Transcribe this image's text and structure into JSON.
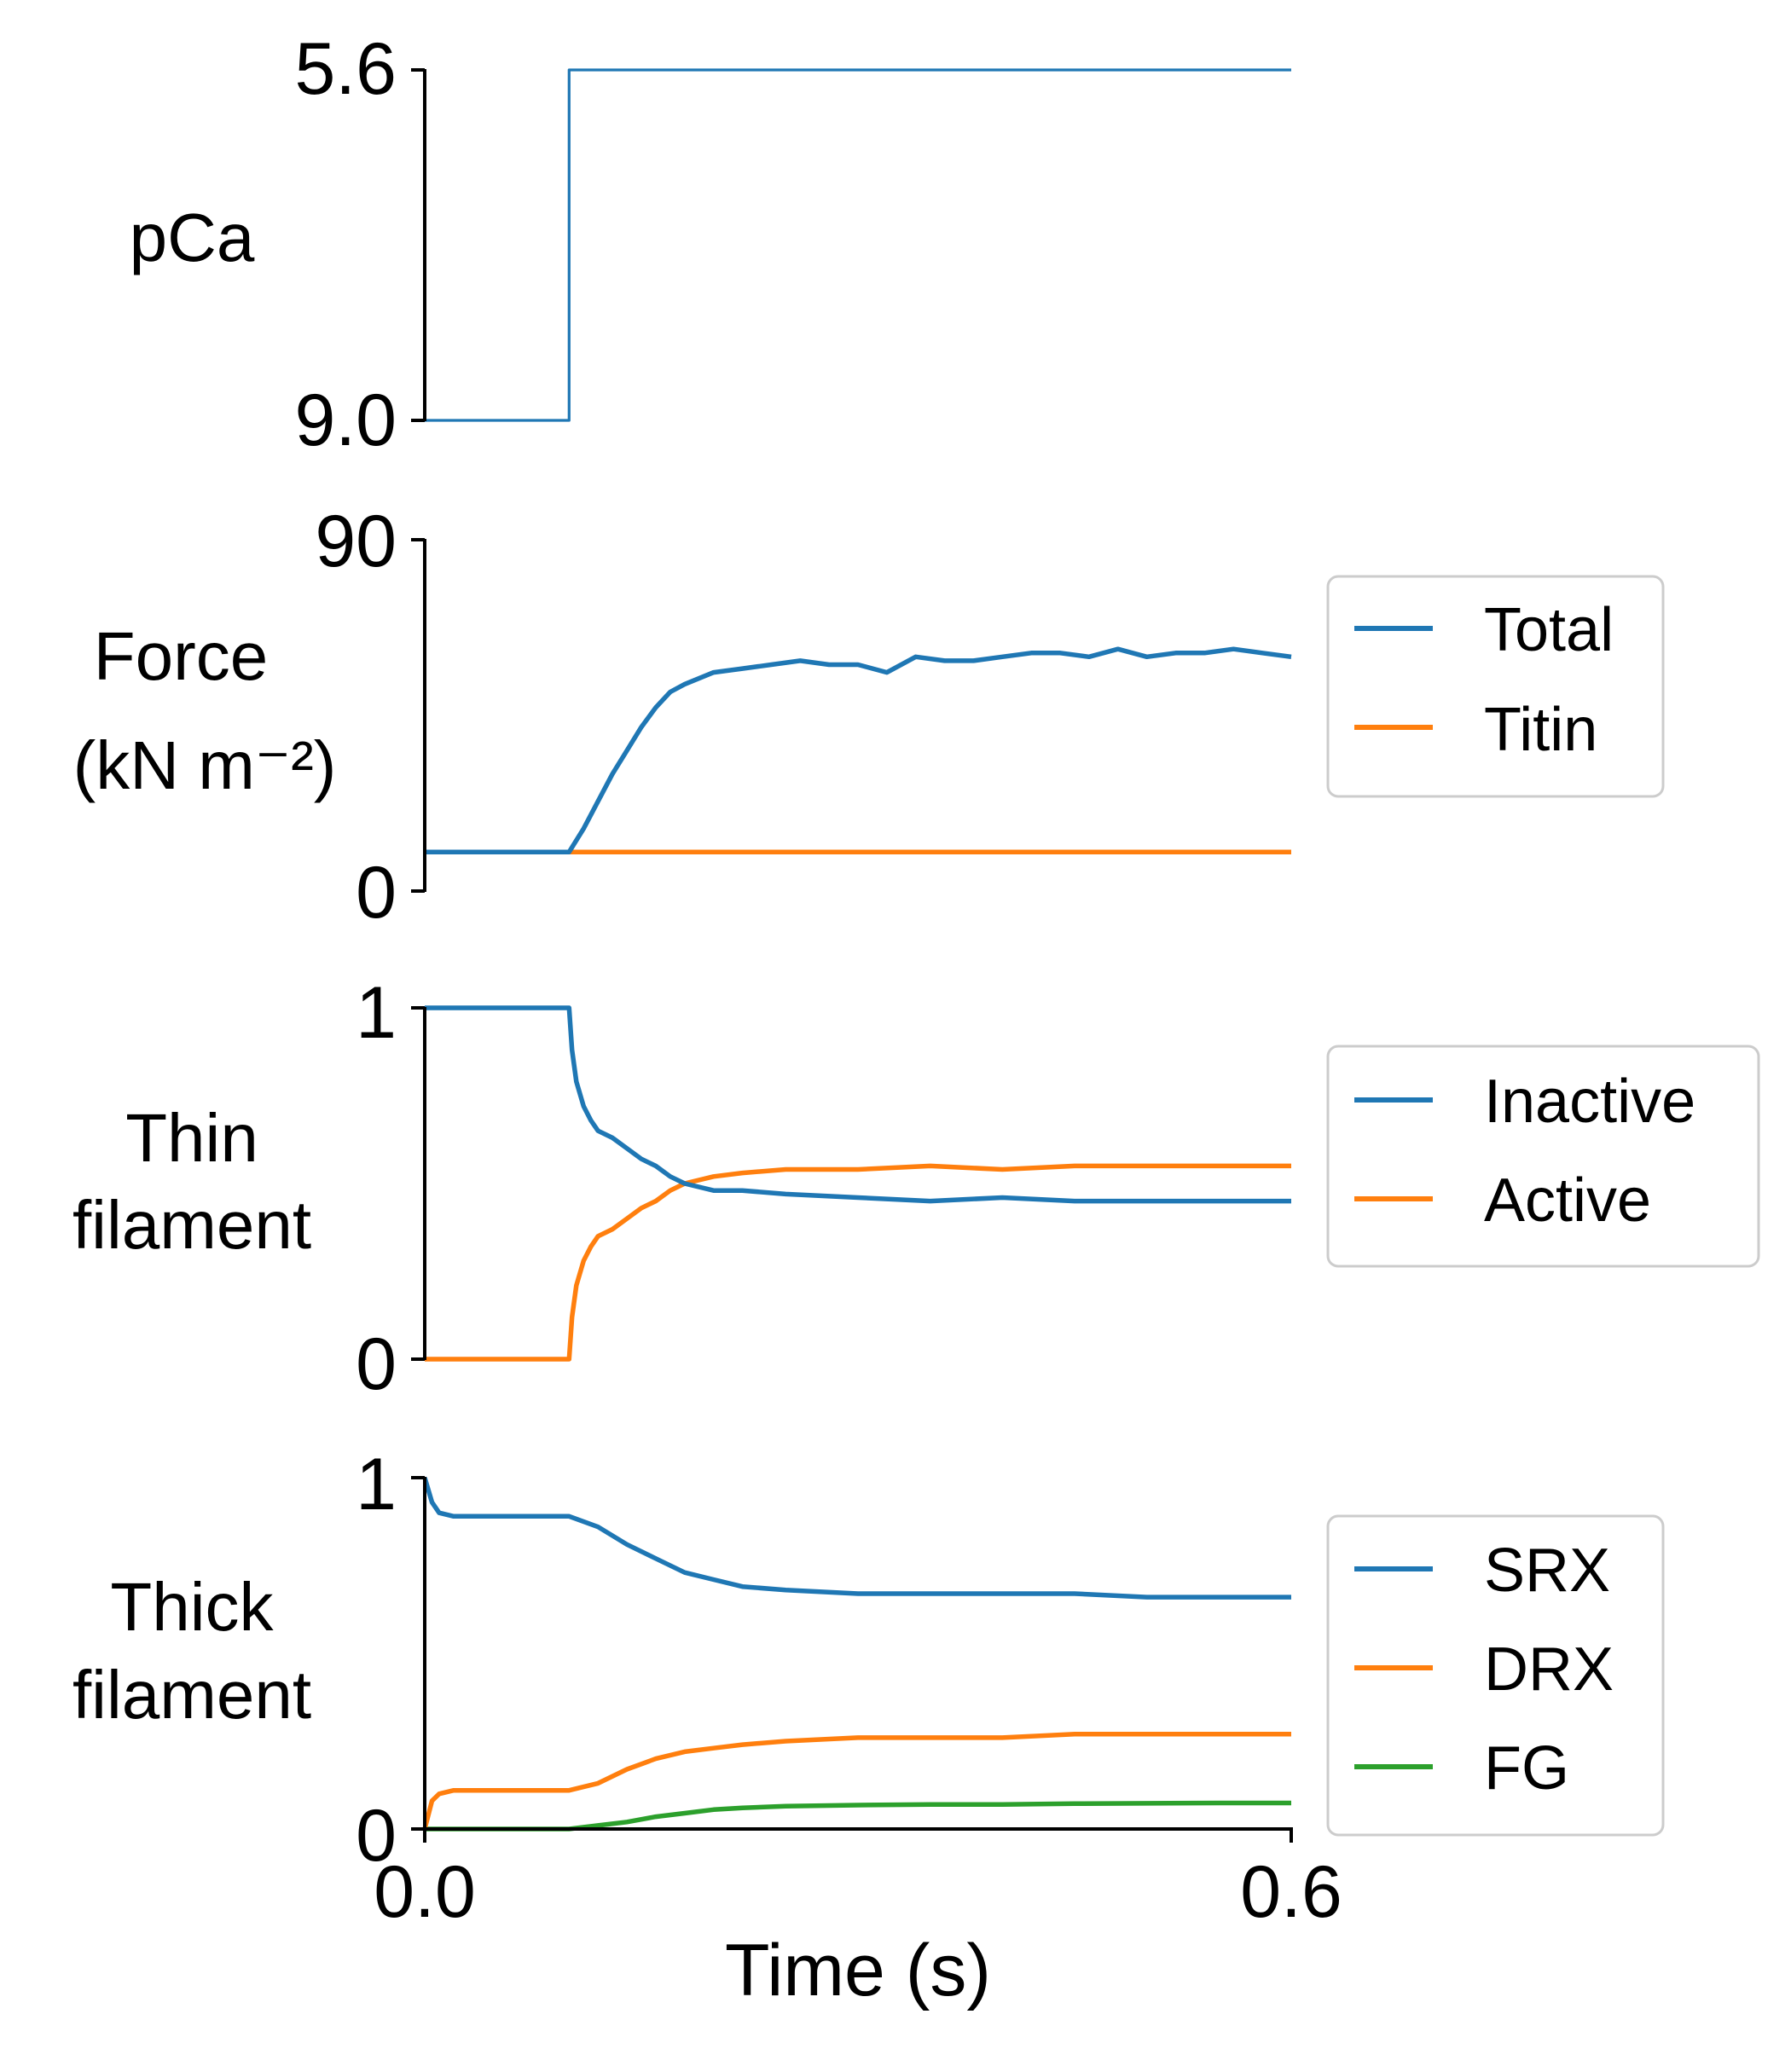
{
  "chart_data": [
    {
      "type": "line",
      "ylabel": [
        "pCa"
      ],
      "xlim": [
        0,
        0.6
      ],
      "ylim_display": [
        "9.0",
        "5.6"
      ],
      "yticks": [
        "5.6",
        "9.0"
      ],
      "series": [
        {
          "color": "#1f77b4",
          "x": [
            0,
            0.1,
            0.1,
            0.6
          ],
          "y": [
            9.0,
            9.0,
            5.6,
            5.6
          ]
        }
      ]
    },
    {
      "type": "line",
      "ylabel": [
        "Force",
        "(kN m⁻²)"
      ],
      "xlim": [
        0,
        0.6
      ],
      "ylim": [
        0,
        90
      ],
      "yticks": [
        "90",
        "0"
      ],
      "legend_position": "right",
      "series": [
        {
          "name": "Total",
          "color": "#1f77b4",
          "x": [
            0,
            0.1,
            0.11,
            0.12,
            0.13,
            0.14,
            0.15,
            0.16,
            0.17,
            0.18,
            0.2,
            0.22,
            0.24,
            0.26,
            0.28,
            0.3,
            0.32,
            0.34,
            0.36,
            0.38,
            0.4,
            0.42,
            0.44,
            0.46,
            0.48,
            0.5,
            0.52,
            0.54,
            0.56,
            0.58,
            0.6
          ],
          "y": [
            10,
            10,
            16,
            23,
            30,
            36,
            42,
            47,
            51,
            53,
            56,
            57,
            58,
            59,
            58,
            58,
            56,
            60,
            59,
            59,
            60,
            61,
            61,
            60,
            62,
            60,
            61,
            61,
            62,
            61,
            60
          ]
        },
        {
          "name": "Titin",
          "color": "#ff7f0e",
          "x": [
            0,
            0.6
          ],
          "y": [
            10,
            10
          ]
        }
      ]
    },
    {
      "type": "line",
      "ylabel": [
        "Thin",
        "filament"
      ],
      "xlim": [
        0,
        0.6
      ],
      "ylim": [
        0,
        1
      ],
      "yticks": [
        "1",
        "0"
      ],
      "legend_position": "right",
      "series": [
        {
          "name": "Inactive",
          "color": "#1f77b4",
          "x": [
            0,
            0.1,
            0.102,
            0.105,
            0.11,
            0.115,
            0.12,
            0.13,
            0.14,
            0.15,
            0.16,
            0.17,
            0.18,
            0.2,
            0.22,
            0.25,
            0.3,
            0.35,
            0.4,
            0.45,
            0.5,
            0.55,
            0.6
          ],
          "y": [
            1,
            1,
            0.88,
            0.79,
            0.72,
            0.68,
            0.65,
            0.63,
            0.6,
            0.57,
            0.55,
            0.52,
            0.5,
            0.48,
            0.48,
            0.47,
            0.46,
            0.45,
            0.46,
            0.45,
            0.45,
            0.45,
            0.45
          ]
        },
        {
          "name": "Active",
          "color": "#ff7f0e",
          "x": [
            0,
            0.1,
            0.102,
            0.105,
            0.11,
            0.115,
            0.12,
            0.13,
            0.14,
            0.15,
            0.16,
            0.17,
            0.18,
            0.2,
            0.22,
            0.25,
            0.3,
            0.35,
            0.4,
            0.45,
            0.5,
            0.55,
            0.6
          ],
          "y": [
            0,
            0,
            0.12,
            0.21,
            0.28,
            0.32,
            0.35,
            0.37,
            0.4,
            0.43,
            0.45,
            0.48,
            0.5,
            0.52,
            0.53,
            0.54,
            0.54,
            0.55,
            0.54,
            0.55,
            0.55,
            0.55,
            0.55
          ]
        }
      ]
    },
    {
      "type": "line",
      "ylabel": [
        "Thick",
        "filament"
      ],
      "xlabel": "Time (s)",
      "xlim": [
        0,
        0.6
      ],
      "ylim": [
        0,
        1
      ],
      "yticks": [
        "1",
        "0"
      ],
      "xticks": [
        "0.0",
        "0.6"
      ],
      "legend_position": "right",
      "series": [
        {
          "name": "SRX",
          "color": "#1f77b4",
          "x": [
            0,
            0.005,
            0.01,
            0.02,
            0.05,
            0.08,
            0.1,
            0.12,
            0.14,
            0.16,
            0.18,
            0.2,
            0.22,
            0.25,
            0.3,
            0.35,
            0.4,
            0.45,
            0.5,
            0.55,
            0.6
          ],
          "y": [
            1,
            0.93,
            0.9,
            0.89,
            0.89,
            0.89,
            0.89,
            0.86,
            0.81,
            0.77,
            0.73,
            0.71,
            0.69,
            0.68,
            0.67,
            0.67,
            0.67,
            0.67,
            0.66,
            0.66,
            0.66
          ]
        },
        {
          "name": "DRX",
          "color": "#ff7f0e",
          "x": [
            0,
            0.005,
            0.01,
            0.02,
            0.05,
            0.08,
            0.1,
            0.12,
            0.14,
            0.16,
            0.18,
            0.2,
            0.22,
            0.25,
            0.3,
            0.35,
            0.4,
            0.45,
            0.5,
            0.55,
            0.6
          ],
          "y": [
            0,
            0.08,
            0.1,
            0.11,
            0.11,
            0.11,
            0.11,
            0.13,
            0.17,
            0.2,
            0.22,
            0.23,
            0.24,
            0.25,
            0.26,
            0.26,
            0.26,
            0.27,
            0.27,
            0.27,
            0.27
          ]
        },
        {
          "name": "FG",
          "color": "#2ca02c",
          "x": [
            0,
            0.1,
            0.12,
            0.14,
            0.16,
            0.18,
            0.2,
            0.22,
            0.25,
            0.3,
            0.35,
            0.4,
            0.45,
            0.5,
            0.55,
            0.6
          ],
          "y": [
            0,
            0,
            0.01,
            0.02,
            0.035,
            0.045,
            0.055,
            0.06,
            0.065,
            0.068,
            0.07,
            0.07,
            0.072,
            0.073,
            0.074,
            0.074
          ]
        }
      ]
    }
  ]
}
